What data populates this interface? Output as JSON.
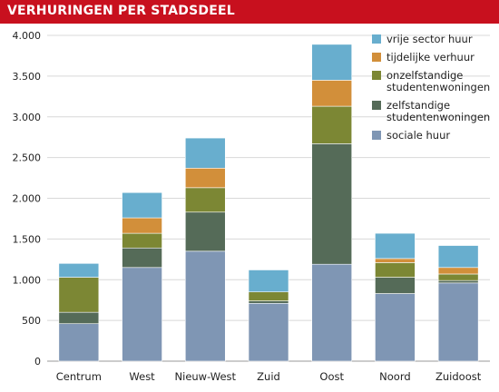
{
  "header": {
    "title": "VERHURINGEN PER STADSDEEL"
  },
  "chart_data": {
    "type": "bar",
    "stacked": true,
    "title": "VERHURINGEN PER STADSDEEL",
    "xlabel": "",
    "ylabel": "",
    "categories": [
      "Centrum",
      "West",
      "Nieuw-West",
      "Zuid",
      "Oost",
      "Noord",
      "Zuidoost"
    ],
    "ylim": [
      0,
      4000
    ],
    "yticks": [
      0,
      500,
      1000,
      1500,
      2000,
      2500,
      3000,
      3500,
      4000
    ],
    "ytick_labels": [
      "0",
      "500",
      "1.000",
      "1.500",
      "2.000",
      "2.500",
      "3.000",
      "3.500",
      "4.000"
    ],
    "grid": true,
    "legend_position": "top-right",
    "series": [
      {
        "name": "sociale huur",
        "color": "#7f96b4",
        "values": [
          460,
          1150,
          1350,
          710,
          1190,
          830,
          960
        ]
      },
      {
        "name": "zelfstandige studentenwoningen",
        "color": "#556b58",
        "values": [
          140,
          240,
          480,
          30,
          1480,
          200,
          30
        ]
      },
      {
        "name": "onzelfstandige studentenwoningen",
        "color": "#7c8734",
        "values": [
          430,
          180,
          300,
          110,
          460,
          180,
          80
        ]
      },
      {
        "name": "tijdelijke verhuur",
        "color": "#d28f3a",
        "values": [
          0,
          190,
          240,
          0,
          320,
          50,
          80
        ]
      },
      {
        "name": "vrije sector huur",
        "color": "#68aece",
        "values": [
          170,
          310,
          370,
          270,
          440,
          310,
          270
        ]
      }
    ],
    "legend_order": [
      "vrije sector huur",
      "tijdelijke verhuur",
      "onzelfstandige studentenwoningen",
      "zelfstandige studentenwoningen",
      "sociale huur"
    ],
    "legend_lines": {
      "vrije sector huur": [
        "vrije sector huur"
      ],
      "tijdelijke verhuur": [
        "tijdelijke verhuur"
      ],
      "onzelfstandige studentenwoningen": [
        "onzelfstandige",
        "studentenwoningen"
      ],
      "zelfstandige studentenwoningen": [
        "zelfstandige",
        "studentenwoningen"
      ],
      "sociale huur": [
        "sociale huur"
      ]
    }
  }
}
